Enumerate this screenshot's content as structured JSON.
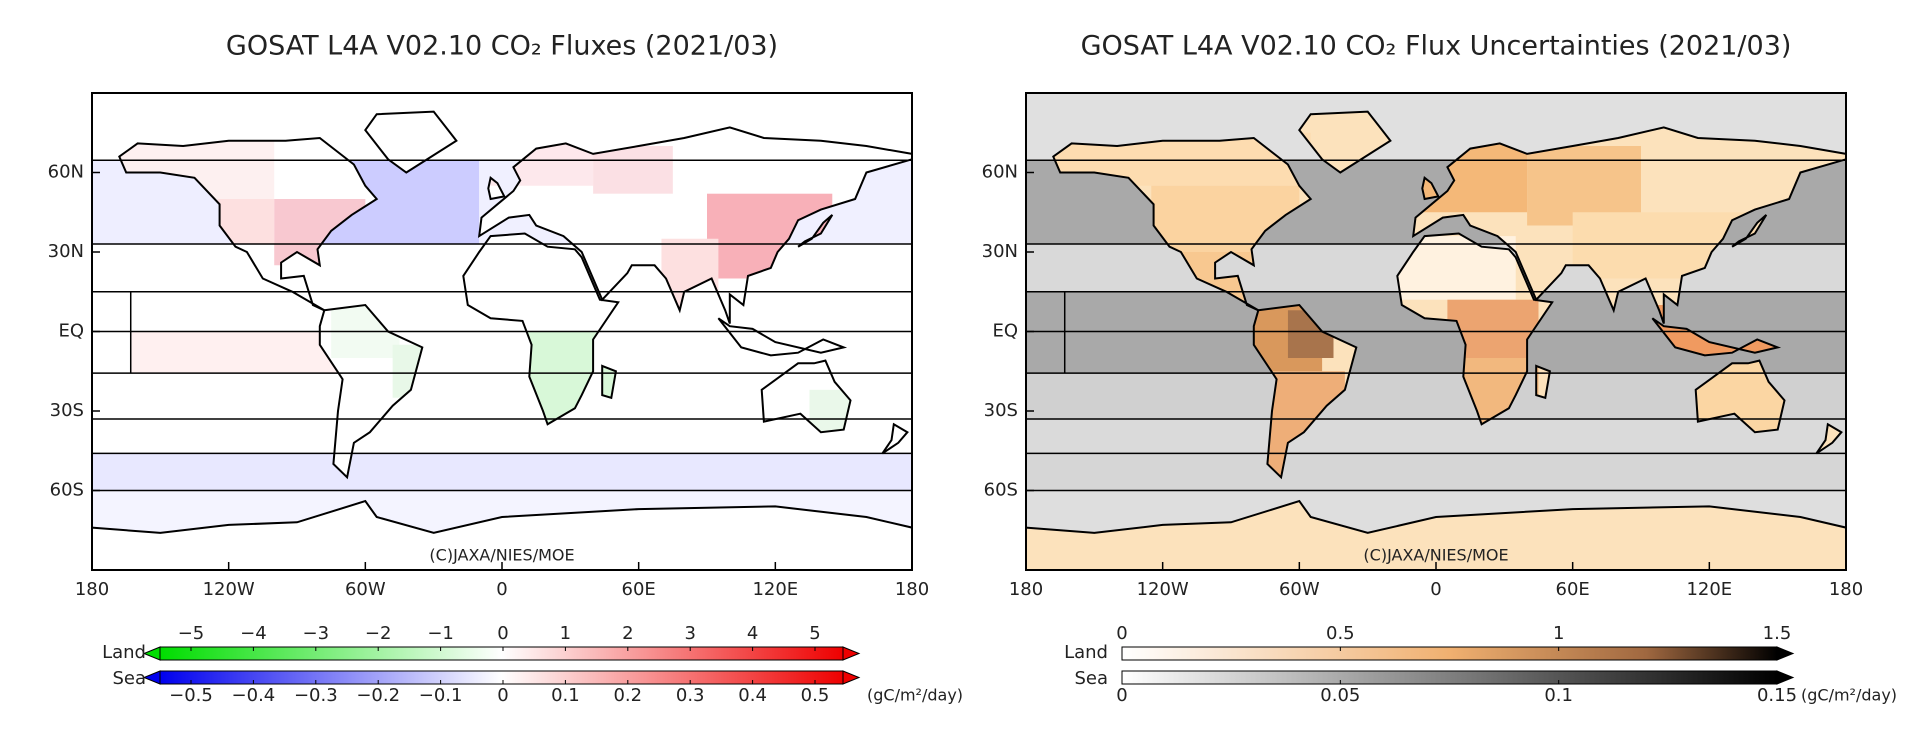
{
  "panels": [
    {
      "title": "GOSAT L4A V02.10 CO₂ Fluxes (2021/03)",
      "copyright": "(C)JAXA/NIES/MOE",
      "x_axis": [
        "180",
        "120W",
        "60W",
        "0",
        "60E",
        "120E",
        "180"
      ],
      "y_axis": [
        "60N",
        "30N",
        "EQ",
        "30S",
        "60S"
      ],
      "colorbar": {
        "land_label": "Land",
        "sea_label": "Sea",
        "land_ticks": [
          "−5",
          "−4",
          "−3",
          "−2",
          "−1",
          "0",
          "1",
          "2",
          "3",
          "4",
          "5"
        ],
        "sea_ticks": [
          "−0.5",
          "−0.4",
          "−0.3",
          "−0.2",
          "−0.1",
          "0",
          "0.1",
          "0.2",
          "0.3",
          "0.4",
          "0.5"
        ],
        "units": "(gC/m²/day)"
      }
    },
    {
      "title": "GOSAT L4A V02.10 CO₂ Flux Uncertainties (2021/03)",
      "copyright": "(C)JAXA/NIES/MOE",
      "x_axis": [
        "180",
        "120W",
        "60W",
        "0",
        "60E",
        "120E",
        "180"
      ],
      "y_axis": [
        "60N",
        "30N",
        "EQ",
        "30S",
        "60S"
      ],
      "colorbar": {
        "land_label": "Land",
        "sea_label": "Sea",
        "land_ticks": [
          "0",
          "0.5",
          "1",
          "1.5"
        ],
        "sea_ticks": [
          "0",
          "0.05",
          "0.1",
          "0.15"
        ],
        "units": "(gC/m²/day)"
      }
    }
  ]
}
